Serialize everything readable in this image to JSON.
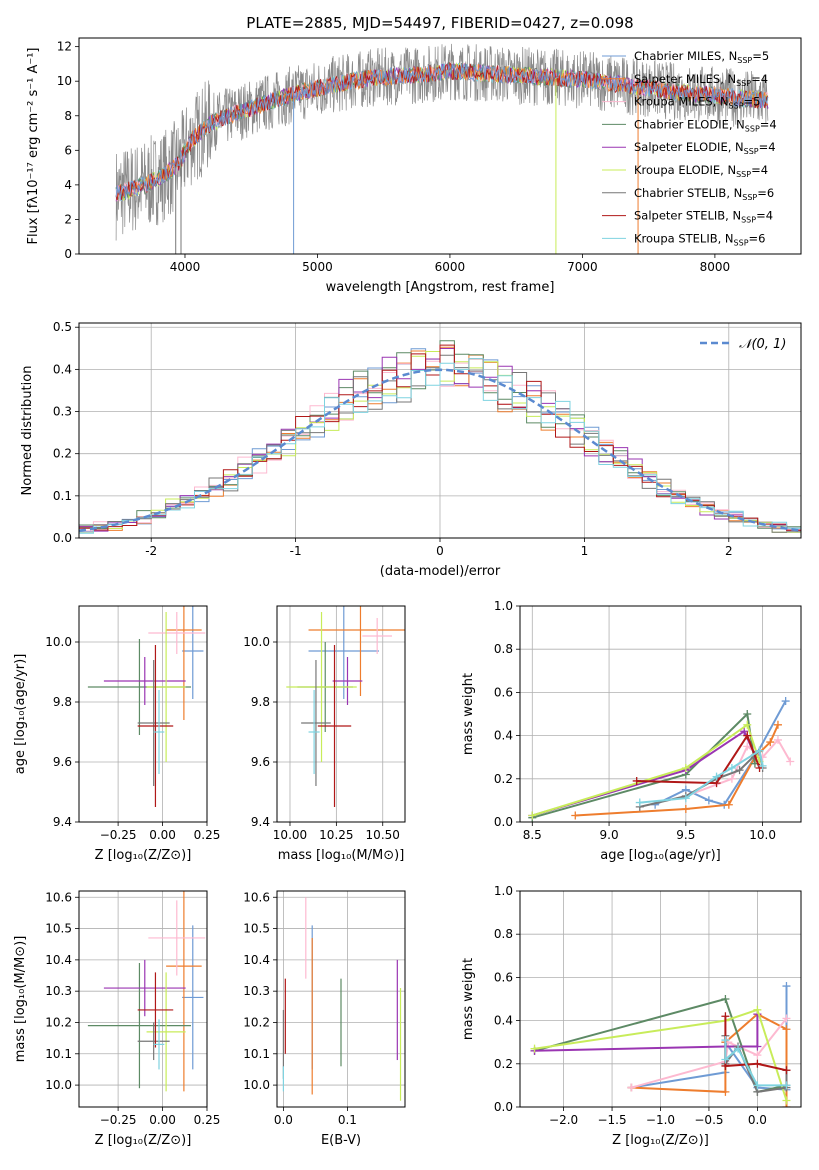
{
  "figure_title": "PLATE=2885, MJD=54497, FIBERID=0427, z=0.098",
  "colors": {
    "series": [
      "#6f9bd4",
      "#ee7d2e",
      "#fdb9d0",
      "#5d8a65",
      "#9a35b2",
      "#c8ec5a",
      "#777777",
      "#b01818",
      "#7fd3e0"
    ],
    "axes": "#000000",
    "grid": "#b0b0b0"
  },
  "chart_data": [
    {
      "id": "spectrum",
      "type": "line",
      "title": "PLATE=2885, MJD=54497, FIBERID=0427, z=0.098",
      "xlabel": "wavelength [Angstrom, rest frame]",
      "ylabel": "Flux [fλ10⁻¹⁷ erg cm⁻² s⁻¹ A⁻¹]",
      "xlim": [
        3200,
        8650
      ],
      "ylim": [
        0,
        12.5
      ],
      "xticks": [
        4000,
        5000,
        6000,
        7000,
        8000
      ],
      "yticks": [
        0,
        2,
        4,
        6,
        8,
        10,
        12
      ],
      "grid": false,
      "legend_position": "top-right",
      "legend": [
        "Chabrier MILES, N_SSP=5",
        "Salpeter MILES, N_SSP=4",
        "Kroupa MILES, N_SSP=5",
        "Chabrier ELODIE, N_SSP=4",
        "Salpeter ELODIE, N_SSP=4",
        "Kroupa ELODIE, N_SSP=4",
        "Chabrier STELIB, N_SSP=6",
        "Salpeter STELIB, N_SSP=4",
        "Kroupa STELIB, N_SSP=6"
      ],
      "continuum": {
        "x": [
          3500,
          3700,
          3850,
          3950,
          4050,
          4200,
          4400,
          4600,
          4800,
          5000,
          5200,
          5400,
          5600,
          5800,
          6000,
          6200,
          6400,
          6600,
          6800,
          7000,
          7200,
          7400,
          7600,
          7800,
          8000,
          8200,
          8400
        ],
        "y": [
          3.5,
          4.0,
          4.6,
          5.2,
          6.6,
          7.6,
          8.2,
          8.7,
          9.2,
          9.6,
          9.9,
          10.2,
          10.3,
          10.4,
          10.6,
          10.5,
          10.4,
          10.3,
          10.2,
          10.1,
          9.9,
          9.7,
          9.5,
          9.3,
          9.2,
          9.0,
          8.9
        ]
      },
      "drops": [
        {
          "x": 4820,
          "series": 0
        },
        {
          "x": 6800,
          "series": 5
        },
        {
          "x": 7420,
          "series": 1
        },
        {
          "x": 3930,
          "series": 6
        },
        {
          "x": 3970,
          "series": 6
        }
      ]
    },
    {
      "id": "residuals",
      "type": "histogram",
      "xlabel": "(data-model)/error",
      "ylabel": "Normed distribution",
      "xlim": [
        -2.5,
        2.5
      ],
      "ylim": [
        0,
        0.51
      ],
      "xticks": [
        -2,
        -1,
        0,
        1,
        2
      ],
      "yticks": [
        0.0,
        0.1,
        0.2,
        0.3,
        0.4,
        0.5
      ],
      "grid": true,
      "legend_position": "top-right",
      "legend": [
        "𝒩(0, 1)"
      ],
      "bin_width": 0.1,
      "bin_start": -2.5,
      "bin_count": 50,
      "gaussian": {
        "mean": 0,
        "sigma": 1,
        "color": "#5b8ad0"
      }
    },
    {
      "id": "age_vs_Z",
      "type": "errorbar",
      "xlabel": "Z [log₁₀(Z/Z⊙)]",
      "ylabel": "age  [log₁₀(age/yr)]",
      "xlim": [
        -0.47,
        0.25
      ],
      "ylim": [
        9.4,
        10.12
      ],
      "xticks": [
        -0.25,
        0.0,
        0.25
      ],
      "xticklabels": [
        "−0.25",
        "0.00",
        "0.25"
      ],
      "yticks": [
        9.4,
        9.6,
        9.8,
        10.0
      ],
      "grid": true,
      "points": [
        {
          "s": 0,
          "x": 0.17,
          "y": 9.97,
          "xerr": 0.06,
          "yerr": 0.16
        },
        {
          "s": 1,
          "x": 0.12,
          "y": 10.04,
          "xerr": 0.1,
          "yerr": 0.3
        },
        {
          "s": 2,
          "x": 0.08,
          "y": 10.03,
          "xerr": 0.16,
          "yerr": 0.07
        },
        {
          "s": 3,
          "x": -0.13,
          "y": 9.85,
          "xerr": 0.29,
          "yerr": 0.16
        },
        {
          "s": 4,
          "x": -0.1,
          "y": 9.87,
          "xerr": 0.23,
          "yerr": 0.08
        },
        {
          "s": 5,
          "x": 0.02,
          "y": 9.85,
          "xerr": 0.11,
          "yerr": 0.25
        },
        {
          "s": 6,
          "x": -0.05,
          "y": 9.73,
          "xerr": 0.09,
          "yerr": 0.21
        },
        {
          "s": 7,
          "x": -0.04,
          "y": 9.72,
          "xerr": 0.1,
          "yerr": 0.27
        },
        {
          "s": 8,
          "x": -0.02,
          "y": 9.7,
          "xerr": 0.03,
          "yerr": 0.14
        }
      ]
    },
    {
      "id": "age_vs_mass",
      "type": "errorbar",
      "xlabel": "mass [log₁₀(M/M⊙)]",
      "ylabel": "",
      "xlim": [
        9.93,
        10.62
      ],
      "ylim": [
        9.4,
        10.12
      ],
      "xticks": [
        10.0,
        10.25,
        10.5
      ],
      "xticklabels": [
        "10.00",
        "10.25",
        "10.50"
      ],
      "yticks": [
        9.4,
        9.6,
        9.8,
        10.0
      ],
      "grid": true,
      "points": [
        {
          "s": 0,
          "x": 10.29,
          "y": 9.97,
          "xerr": 0.19,
          "yerr": 0.16
        },
        {
          "s": 1,
          "x": 10.38,
          "y": 10.04,
          "xerr": 0.28,
          "yerr": 0.22
        },
        {
          "s": 2,
          "x": 10.47,
          "y": 10.02,
          "xerr": 0.08,
          "yerr": 0.06
        },
        {
          "s": 3,
          "x": 10.19,
          "y": 9.85,
          "xerr": 0.15,
          "yerr": 0.15
        },
        {
          "s": 4,
          "x": 10.31,
          "y": 9.87,
          "xerr": 0.08,
          "yerr": 0.08
        },
        {
          "s": 5,
          "x": 10.17,
          "y": 9.85,
          "xerr": 0.19,
          "yerr": 0.25
        },
        {
          "s": 6,
          "x": 10.14,
          "y": 9.73,
          "xerr": 0.08,
          "yerr": 0.21
        },
        {
          "s": 7,
          "x": 10.24,
          "y": 9.72,
          "xerr": 0.09,
          "yerr": 0.27
        },
        {
          "s": 8,
          "x": 10.13,
          "y": 9.7,
          "xerr": 0.03,
          "yerr": 0.14
        }
      ]
    },
    {
      "id": "mass_vs_Z",
      "type": "errorbar",
      "xlabel": "Z [log₁₀(Z/Z⊙)]",
      "ylabel": "mass [log₁₀(M/M⊙)]",
      "xlim": [
        -0.47,
        0.25
      ],
      "ylim": [
        9.93,
        10.62
      ],
      "xticks": [
        -0.25,
        0.0,
        0.25
      ],
      "xticklabels": [
        "−0.25",
        "0.00",
        "0.25"
      ],
      "yticks": [
        10.0,
        10.1,
        10.2,
        10.3,
        10.4,
        10.5,
        10.6
      ],
      "grid": true,
      "points": [
        {
          "s": 0,
          "x": 0.17,
          "y": 10.28,
          "xerr": 0.06,
          "yerr": 0.23
        },
        {
          "s": 1,
          "x": 0.12,
          "y": 10.38,
          "xerr": 0.1,
          "yerr": 0.4
        },
        {
          "s": 2,
          "x": 0.08,
          "y": 10.47,
          "xerr": 0.16,
          "yerr": 0.12
        },
        {
          "s": 3,
          "x": -0.13,
          "y": 10.19,
          "xerr": 0.29,
          "yerr": 0.2
        },
        {
          "s": 4,
          "x": -0.1,
          "y": 10.31,
          "xerr": 0.23,
          "yerr": 0.09
        },
        {
          "s": 5,
          "x": 0.02,
          "y": 10.17,
          "xerr": 0.11,
          "yerr": 0.19
        },
        {
          "s": 6,
          "x": -0.05,
          "y": 10.14,
          "xerr": 0.09,
          "yerr": 0.06
        },
        {
          "s": 7,
          "x": -0.04,
          "y": 10.24,
          "xerr": 0.1,
          "yerr": 0.12
        },
        {
          "s": 8,
          "x": -0.02,
          "y": 10.13,
          "xerr": 0.03,
          "yerr": 0.08
        }
      ]
    },
    {
      "id": "mass_vs_EBV",
      "type": "errorbar",
      "xlabel": "E(B-V)",
      "ylabel": "",
      "xlim": [
        -0.01,
        0.19
      ],
      "ylim": [
        9.93,
        10.62
      ],
      "xticks": [
        0.0,
        0.1
      ],
      "xticklabels": [
        "0.0",
        "0.1"
      ],
      "yticks": [
        10.0,
        10.1,
        10.2,
        10.3,
        10.4,
        10.5,
        10.6
      ],
      "grid": true,
      "points": [
        {
          "s": 0,
          "x": 0.045,
          "y": 10.28,
          "xerr": 0,
          "yerr": 0.23
        },
        {
          "s": 1,
          "x": 0.045,
          "y": 10.22,
          "xerr": 0,
          "yerr": 0.25
        },
        {
          "s": 2,
          "x": 0.035,
          "y": 10.47,
          "xerr": 0,
          "yerr": 0.13
        },
        {
          "s": 3,
          "x": 0.09,
          "y": 10.2,
          "xerr": 0,
          "yerr": 0.14
        },
        {
          "s": 4,
          "x": 0.178,
          "y": 10.24,
          "xerr": 0,
          "yerr": 0.16
        },
        {
          "s": 5,
          "x": 0.183,
          "y": 10.13,
          "xerr": 0,
          "yerr": 0.18
        },
        {
          "s": 6,
          "x": 0.0,
          "y": 10.13,
          "xerr": 0,
          "yerr": 0.11
        },
        {
          "s": 7,
          "x": 0.003,
          "y": 10.22,
          "xerr": 0,
          "yerr": 0.12
        },
        {
          "s": 8,
          "x": 0.0,
          "y": 10.02,
          "xerr": 0,
          "yerr": 0.04
        }
      ]
    },
    {
      "id": "weight_vs_age",
      "type": "line",
      "xlabel": "age  [log₁₀(age/yr)]",
      "ylabel": "mass weight",
      "xlim": [
        8.42,
        10.25
      ],
      "ylim": [
        0,
        1.0
      ],
      "xticks": [
        8.5,
        9.0,
        9.5,
        10.0
      ],
      "xticklabels": [
        "8.5",
        "9.0",
        "9.5",
        "10.0"
      ],
      "yticks": [
        0.0,
        0.2,
        0.4,
        0.6,
        0.8,
        1.0
      ],
      "grid": true,
      "series": [
        {
          "s": 0,
          "x": [
            9.3,
            9.5,
            9.65,
            9.75,
            9.95,
            10.15
          ],
          "y": [
            0.08,
            0.15,
            0.1,
            0.08,
            0.3,
            0.56
          ]
        },
        {
          "s": 1,
          "x": [
            8.78,
            9.5,
            9.78,
            9.95,
            10.05,
            10.1
          ],
          "y": [
            0.03,
            0.06,
            0.08,
            0.3,
            0.37,
            0.45
          ]
        },
        {
          "s": 2,
          "x": [
            9.5,
            9.8,
            9.9,
            10.0,
            10.1,
            10.18
          ],
          "y": [
            0.12,
            0.2,
            0.35,
            0.3,
            0.38,
            0.28
          ]
        },
        {
          "s": 3,
          "x": [
            8.5,
            9.5,
            9.9,
            9.95
          ],
          "y": [
            0.02,
            0.22,
            0.5,
            0.27
          ]
        },
        {
          "s": 4,
          "x": [
            8.5,
            9.5,
            9.88,
            9.95
          ],
          "y": [
            0.03,
            0.24,
            0.42,
            0.31
          ]
        },
        {
          "s": 5,
          "x": [
            8.5,
            9.5,
            9.9,
            9.98
          ],
          "y": [
            0.03,
            0.25,
            0.45,
            0.28
          ]
        },
        {
          "s": 6,
          "x": [
            9.2,
            9.5,
            9.7,
            9.85,
            9.98,
            10.0
          ],
          "y": [
            0.07,
            0.12,
            0.2,
            0.24,
            0.33,
            0.25
          ]
        },
        {
          "s": 7,
          "x": [
            9.18,
            9.7,
            9.9,
            9.98
          ],
          "y": [
            0.19,
            0.18,
            0.4,
            0.25
          ]
        },
        {
          "s": 8,
          "x": [
            9.2,
            9.5,
            9.7,
            9.8,
            9.98,
            10.0
          ],
          "y": [
            0.09,
            0.11,
            0.21,
            0.25,
            0.33,
            0.26
          ]
        }
      ]
    },
    {
      "id": "weight_vs_Z",
      "type": "line",
      "xlabel": "Z [log₁₀(Z/Z⊙)]",
      "ylabel": "mass weight",
      "xlim": [
        -2.45,
        0.45
      ],
      "ylim": [
        0,
        1.0
      ],
      "xticks": [
        -2.0,
        -1.5,
        -1.0,
        -0.5,
        0.0
      ],
      "xticklabels": [
        "−2.0",
        "−1.5",
        "−1.0",
        "−0.5",
        "0.0"
      ],
      "yticks": [
        0.0,
        0.2,
        0.4,
        0.6,
        0.8,
        1.0
      ],
      "grid": true,
      "series": [
        {
          "s": 0,
          "x": [
            -1.3,
            -0.33,
            -0.33,
            0.0,
            0.3,
            0.3
          ],
          "y": [
            0.09,
            0.16,
            0.3,
            0.09,
            0.08,
            0.56
          ]
        },
        {
          "s": 1,
          "x": [
            -1.3,
            -0.33,
            -0.33,
            0.0,
            0.3,
            0.3
          ],
          "y": [
            0.09,
            0.07,
            0.3,
            0.43,
            0.36,
            0.0
          ]
        },
        {
          "s": 2,
          "x": [
            -1.3,
            -0.33,
            -0.3,
            0.0,
            0.3
          ],
          "y": [
            0.09,
            0.21,
            0.3,
            0.24,
            0.41
          ]
        },
        {
          "s": 3,
          "x": [
            -2.3,
            -0.33,
            0.0,
            0.3
          ],
          "y": [
            0.26,
            0.5,
            0.07,
            0.1
          ]
        },
        {
          "s": 4,
          "x": [
            -2.3,
            -0.33,
            0.0,
            0.0
          ],
          "y": [
            0.26,
            0.28,
            0.28,
            0.43
          ]
        },
        {
          "s": 5,
          "x": [
            -2.3,
            -0.33,
            0.0,
            0.3
          ],
          "y": [
            0.27,
            0.4,
            0.45,
            0.03
          ]
        },
        {
          "s": 6,
          "x": [
            -0.33,
            -0.33,
            -0.2,
            0.0,
            0.3,
            0.3
          ],
          "y": [
            0.33,
            0.2,
            0.28,
            0.07,
            0.09,
            0.17
          ]
        },
        {
          "s": 7,
          "x": [
            -0.33,
            -0.33,
            0.0,
            0.3
          ],
          "y": [
            0.42,
            0.19,
            0.2,
            0.17
          ]
        },
        {
          "s": 8,
          "x": [
            -0.33,
            -0.33,
            -0.2,
            0.0,
            0.3
          ],
          "y": [
            0.31,
            0.22,
            0.27,
            0.1,
            0.1
          ]
        }
      ]
    }
  ]
}
